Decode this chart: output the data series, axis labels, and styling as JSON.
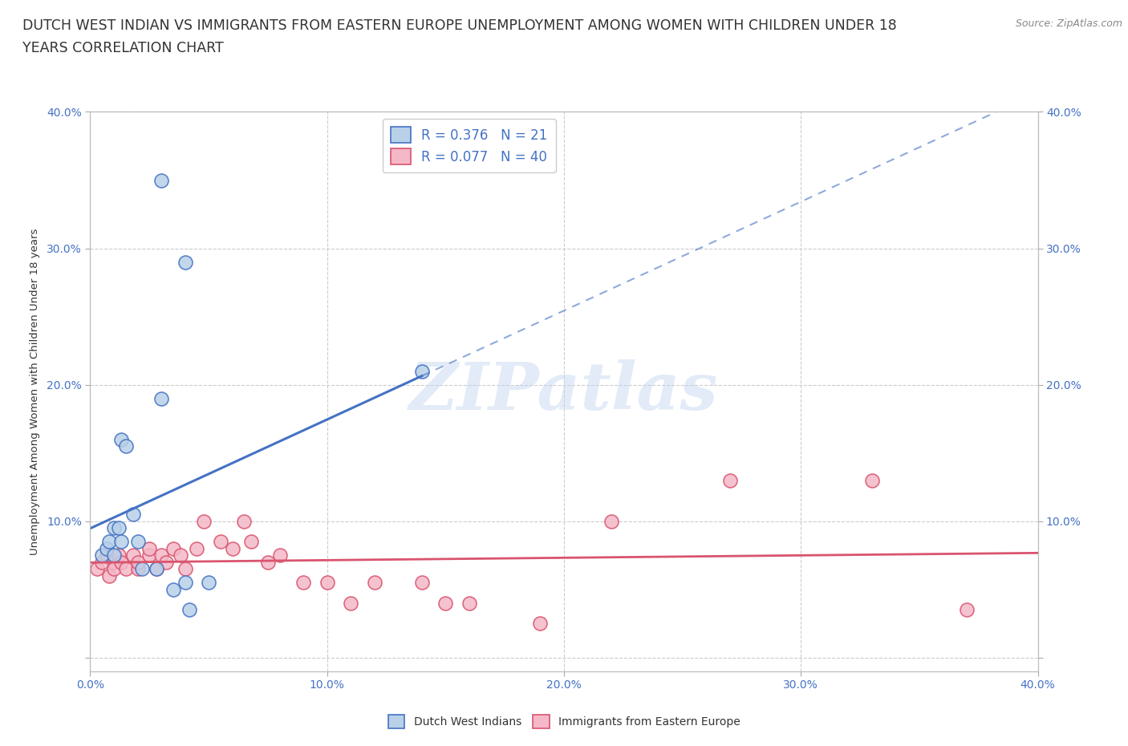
{
  "title_line1": "DUTCH WEST INDIAN VS IMMIGRANTS FROM EASTERN EUROPE UNEMPLOYMENT AMONG WOMEN WITH CHILDREN UNDER 18",
  "title_line2": "YEARS CORRELATION CHART",
  "source": "Source: ZipAtlas.com",
  "ylabel": "Unemployment Among Women with Children Under 18 years",
  "xlim": [
    0.0,
    0.4
  ],
  "ylim": [
    -0.01,
    0.4
  ],
  "xticks": [
    0.0,
    0.1,
    0.2,
    0.3,
    0.4
  ],
  "yticks": [
    0.0,
    0.1,
    0.2,
    0.3,
    0.4
  ],
  "xtick_labels": [
    "0.0%",
    "10.0%",
    "20.0%",
    "30.0%",
    "40.0%"
  ],
  "ytick_labels_left": [
    "",
    "10.0%",
    "20.0%",
    "30.0%",
    "40.0%"
  ],
  "ytick_labels_right": [
    "",
    "10.0%",
    "20.0%",
    "30.0%",
    "40.0%"
  ],
  "watermark": "ZIPatlas",
  "blue_R": 0.376,
  "blue_N": 21,
  "pink_R": 0.077,
  "pink_N": 40,
  "blue_color": "#b8d0e8",
  "blue_line_color": "#4472C4",
  "pink_color": "#f4b8c8",
  "pink_line_color": "#d9546e",
  "blue_scatter": [
    [
      0.005,
      0.075
    ],
    [
      0.007,
      0.08
    ],
    [
      0.008,
      0.085
    ],
    [
      0.01,
      0.075
    ],
    [
      0.01,
      0.095
    ],
    [
      0.012,
      0.095
    ],
    [
      0.013,
      0.085
    ],
    [
      0.013,
      0.16
    ],
    [
      0.015,
      0.155
    ],
    [
      0.018,
      0.105
    ],
    [
      0.02,
      0.085
    ],
    [
      0.022,
      0.065
    ],
    [
      0.028,
      0.065
    ],
    [
      0.03,
      0.19
    ],
    [
      0.035,
      0.05
    ],
    [
      0.04,
      0.055
    ],
    [
      0.042,
      0.035
    ],
    [
      0.05,
      0.055
    ],
    [
      0.03,
      0.35
    ],
    [
      0.04,
      0.29
    ],
    [
      0.14,
      0.21
    ]
  ],
  "pink_scatter": [
    [
      0.003,
      0.065
    ],
    [
      0.005,
      0.07
    ],
    [
      0.007,
      0.075
    ],
    [
      0.008,
      0.06
    ],
    [
      0.01,
      0.07
    ],
    [
      0.01,
      0.065
    ],
    [
      0.012,
      0.075
    ],
    [
      0.013,
      0.07
    ],
    [
      0.015,
      0.065
    ],
    [
      0.018,
      0.075
    ],
    [
      0.02,
      0.065
    ],
    [
      0.02,
      0.07
    ],
    [
      0.025,
      0.075
    ],
    [
      0.025,
      0.08
    ],
    [
      0.028,
      0.065
    ],
    [
      0.03,
      0.075
    ],
    [
      0.032,
      0.07
    ],
    [
      0.035,
      0.08
    ],
    [
      0.038,
      0.075
    ],
    [
      0.04,
      0.065
    ],
    [
      0.045,
      0.08
    ],
    [
      0.048,
      0.1
    ],
    [
      0.055,
      0.085
    ],
    [
      0.06,
      0.08
    ],
    [
      0.065,
      0.1
    ],
    [
      0.068,
      0.085
    ],
    [
      0.075,
      0.07
    ],
    [
      0.08,
      0.075
    ],
    [
      0.09,
      0.055
    ],
    [
      0.1,
      0.055
    ],
    [
      0.11,
      0.04
    ],
    [
      0.12,
      0.055
    ],
    [
      0.14,
      0.055
    ],
    [
      0.15,
      0.04
    ],
    [
      0.16,
      0.04
    ],
    [
      0.19,
      0.025
    ],
    [
      0.22,
      0.1
    ],
    [
      0.27,
      0.13
    ],
    [
      0.33,
      0.13
    ],
    [
      0.37,
      0.035
    ]
  ],
  "background_color": "#ffffff",
  "grid_color": "#cccccc",
  "title_fontsize": 12.5,
  "axis_label_fontsize": 9.5,
  "tick_fontsize": 10,
  "tick_color": "#4472C4",
  "legend_fontsize": 12
}
